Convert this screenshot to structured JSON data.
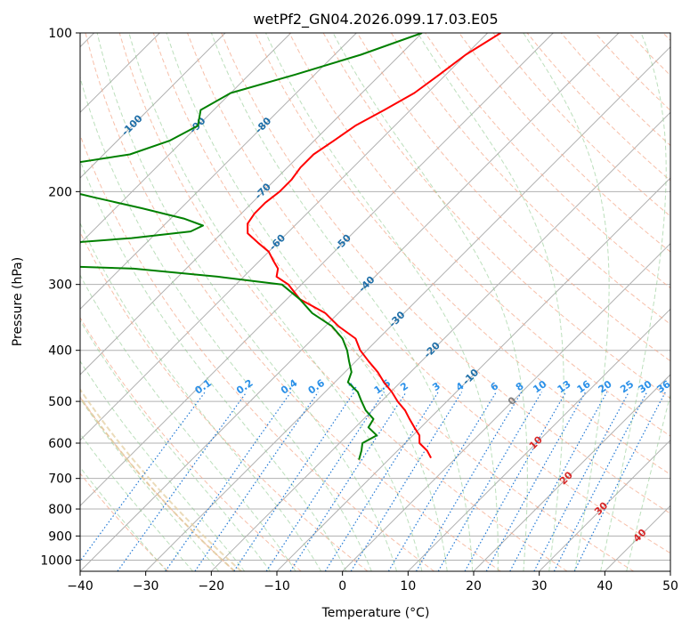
{
  "chart_data": {
    "type": "line",
    "title": "wetPf2_GN04.2026.099.17.03.E05",
    "xlabel": "Temperature (°C)",
    "ylabel": "Pressure (hPa)",
    "xlim": [
      -40,
      50
    ],
    "ylim": [
      1050,
      100
    ],
    "y_scale": "log",
    "skew": true,
    "grid": true,
    "x_ticks": [
      -40,
      -30,
      -20,
      -10,
      0,
      10,
      20,
      30,
      40,
      50
    ],
    "x_tick_labels": [
      "−40",
      "−30",
      "−20",
      "−10",
      "0",
      "10",
      "20",
      "30",
      "40",
      "50"
    ],
    "y_ticks": [
      100,
      200,
      300,
      400,
      500,
      600,
      700,
      800,
      900,
      1000
    ],
    "y_tick_labels": [
      "100",
      "200",
      "300",
      "400",
      "500",
      "600",
      "700",
      "800",
      "900",
      "1000"
    ],
    "isotherm_labels": [
      {
        "t": -100,
        "p": 150,
        "text": "-100"
      },
      {
        "t": -90,
        "p": 150,
        "text": "-90"
      },
      {
        "t": -80,
        "p": 150,
        "text": "-80"
      },
      {
        "t": -70,
        "p": 200,
        "text": "-70"
      },
      {
        "t": -60,
        "p": 250,
        "text": "-60"
      },
      {
        "t": -50,
        "p": 250,
        "text": "-50"
      },
      {
        "t": -40,
        "p": 300,
        "text": "-40"
      },
      {
        "t": -30,
        "p": 350,
        "text": "-30"
      },
      {
        "t": -20,
        "p": 400,
        "text": "-20"
      },
      {
        "t": -10,
        "p": 450,
        "text": "-10"
      },
      {
        "t": 0,
        "p": 500,
        "text": "0"
      },
      {
        "t": 10,
        "p": 600,
        "text": "10"
      },
      {
        "t": 20,
        "p": 700,
        "text": "20"
      },
      {
        "t": 30,
        "p": 800,
        "text": "30"
      },
      {
        "t": 40,
        "p": 900,
        "text": "40"
      }
    ],
    "mixing_ratio_labels": [
      "0.1",
      "0.2",
      "0.4",
      "0.6",
      "1",
      "1.5",
      "2",
      "3",
      "4",
      "6",
      "8",
      "10",
      "13",
      "16",
      "20",
      "25",
      "30",
      "36"
    ],
    "series": [
      {
        "color": "#ff0000",
        "points": [
          {
            "p": 100,
            "t": -58
          },
          {
            "p": 110,
            "t": -60
          },
          {
            "p": 120,
            "t": -61
          },
          {
            "p": 130,
            "t": -62
          },
          {
            "p": 140,
            "t": -64
          },
          {
            "p": 150,
            "t": -66
          },
          {
            "p": 160,
            "t": -67
          },
          {
            "p": 170,
            "t": -68
          },
          {
            "p": 180,
            "t": -68
          },
          {
            "p": 190,
            "t": -67.5
          },
          {
            "p": 200,
            "t": -67.5
          },
          {
            "p": 210,
            "t": -68
          },
          {
            "p": 220,
            "t": -68
          },
          {
            "p": 230,
            "t": -67.5
          },
          {
            "p": 240,
            "t": -66
          },
          {
            "p": 250,
            "t": -63
          },
          {
            "p": 260,
            "t": -60
          },
          {
            "p": 270,
            "t": -58
          },
          {
            "p": 280,
            "t": -56
          },
          {
            "p": 290,
            "t": -55
          },
          {
            "p": 300,
            "t": -52
          },
          {
            "p": 320,
            "t": -48
          },
          {
            "p": 340,
            "t": -42
          },
          {
            "p": 360,
            "t": -38
          },
          {
            "p": 380,
            "t": -33.5
          },
          {
            "p": 400,
            "t": -31
          },
          {
            "p": 420,
            "t": -28
          },
          {
            "p": 440,
            "t": -25
          },
          {
            "p": 460,
            "t": -22.5
          },
          {
            "p": 480,
            "t": -19.8
          },
          {
            "p": 500,
            "t": -17.5
          },
          {
            "p": 520,
            "t": -15
          },
          {
            "p": 540,
            "t": -13
          },
          {
            "p": 560,
            "t": -11
          },
          {
            "p": 580,
            "t": -9
          },
          {
            "p": 600,
            "t": -7.8
          },
          {
            "p": 620,
            "t": -5.5
          },
          {
            "p": 640,
            "t": -3.8
          }
        ]
      },
      {
        "color": "#008000",
        "points": [
          {
            "p": 100,
            "t": -70
          },
          {
            "p": 110,
            "t": -76
          },
          {
            "p": 120,
            "t": -83
          },
          {
            "p": 130,
            "t": -90
          },
          {
            "p": 140,
            "t": -92
          },
          {
            "p": 150,
            "t": -90
          },
          {
            "p": 160,
            "t": -92
          },
          {
            "p": 170,
            "t": -96
          },
          {
            "p": 180,
            "t": -107
          },
          {
            "p": 192,
            "t": -106
          },
          {
            "p": 195,
            "t": -104
          },
          {
            "p": 205,
            "t": -95
          },
          {
            "p": 215,
            "t": -86
          },
          {
            "p": 225,
            "t": -78
          },
          {
            "p": 232,
            "t": -74
          },
          {
            "p": 238,
            "t": -75
          },
          {
            "p": 245,
            "t": -83
          },
          {
            "p": 255,
            "t": -100
          },
          {
            "p": 260,
            "t": -106
          },
          {
            "p": 270,
            "t": -101
          },
          {
            "p": 275,
            "t": -97
          },
          {
            "p": 280,
            "t": -78
          },
          {
            "p": 290,
            "t": -64
          },
          {
            "p": 300,
            "t": -53
          },
          {
            "p": 320,
            "t": -48
          },
          {
            "p": 340,
            "t": -44
          },
          {
            "p": 360,
            "t": -39
          },
          {
            "p": 380,
            "t": -35.5
          },
          {
            "p": 400,
            "t": -33
          },
          {
            "p": 420,
            "t": -31
          },
          {
            "p": 440,
            "t": -29
          },
          {
            "p": 460,
            "t": -28
          },
          {
            "p": 480,
            "t": -25
          },
          {
            "p": 500,
            "t": -23
          },
          {
            "p": 520,
            "t": -21
          },
          {
            "p": 540,
            "t": -18.5
          },
          {
            "p": 560,
            "t": -18
          },
          {
            "p": 580,
            "t": -15.5
          },
          {
            "p": 600,
            "t": -16.5
          },
          {
            "p": 620,
            "t": -15.5
          },
          {
            "p": 645,
            "t": -14.5
          }
        ]
      }
    ]
  }
}
